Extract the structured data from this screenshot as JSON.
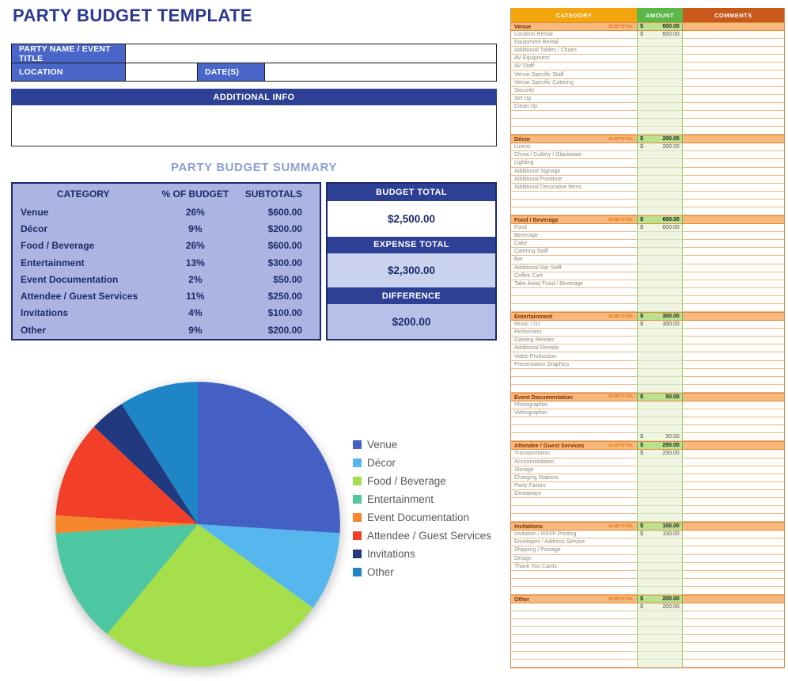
{
  "page": {
    "title": "PARTY BUDGET TEMPLATE"
  },
  "event_form": {
    "fields": [
      {
        "label": "PARTY NAME / EVENT TITLE",
        "value": ""
      },
      {
        "label": "LOCATION",
        "value": ""
      },
      {
        "label": "DATE(S)",
        "value": ""
      }
    ],
    "additional_info": {
      "label": "ADDITIONAL INFO",
      "value": ""
    }
  },
  "summary": {
    "title": "PARTY BUDGET SUMMARY",
    "columns": [
      "CATEGORY",
      "% OF BUDGET",
      "SUBTOTALS"
    ],
    "rows": [
      {
        "category": "Venue",
        "percent": "26%",
        "subtotal": "$600.00"
      },
      {
        "category": "Décor",
        "percent": "9%",
        "subtotal": "$200.00"
      },
      {
        "category": "Food / Beverage",
        "percent": "26%",
        "subtotal": "$600.00"
      },
      {
        "category": "Entertainment",
        "percent": "13%",
        "subtotal": "$300.00"
      },
      {
        "category": "Event Documentation",
        "percent": "2%",
        "subtotal": "$50.00"
      },
      {
        "category": "Attendee / Guest Services",
        "percent": "11%",
        "subtotal": "$250.00"
      },
      {
        "category": "Invitations",
        "percent": "4%",
        "subtotal": "$100.00"
      },
      {
        "category": "Other",
        "percent": "9%",
        "subtotal": "$200.00"
      }
    ],
    "totals": [
      {
        "label": "BUDGET TOTAL",
        "value": "$2,500.00"
      },
      {
        "label": "EXPENSE TOTAL",
        "value": "$2,300.00"
      },
      {
        "label": "DIFFERENCE",
        "value": "$200.00"
      }
    ]
  },
  "chart_data": {
    "type": "pie",
    "title": "",
    "categories": [
      "Venue",
      "Décor",
      "Food / Beverage",
      "Entertainment",
      "Event Documentation",
      "Attendee / Guest Services",
      "Invitations",
      "Other"
    ],
    "values": [
      26,
      9,
      26,
      13,
      2,
      11,
      4,
      9
    ],
    "colors": [
      "#4560C4",
      "#55B7EE",
      "#A5E04C",
      "#4DC7A1",
      "#F5862B",
      "#F23F28",
      "#21397E",
      "#1E86C6"
    ],
    "legend_position": "right",
    "start_angle_deg": -90,
    "direction": "clockwise"
  },
  "detail_table": {
    "columns": [
      {
        "label": "CATEGORY",
        "color": "#F2A50C"
      },
      {
        "label": "AMOUNT",
        "color": "#5CB648"
      },
      {
        "label": "COMMENTS",
        "color": "#C8591B"
      }
    ],
    "subtotal_tag": "SUBTOTAL",
    "currency": "$",
    "sections": [
      {
        "name": "Venue",
        "subtotal": "600.00",
        "items": [
          {
            "label": "Location Rental",
            "amount": "600.00"
          },
          {
            "label": "Equipment Rental",
            "amount": ""
          },
          {
            "label": "Additional Tables / Chairs",
            "amount": ""
          },
          {
            "label": "AV Equipment",
            "amount": ""
          },
          {
            "label": "AV Staff",
            "amount": ""
          },
          {
            "label": "Venue Specific Staff",
            "amount": ""
          },
          {
            "label": "Venue Specific Catering",
            "amount": ""
          },
          {
            "label": "Security",
            "amount": ""
          },
          {
            "label": "Set Up",
            "amount": ""
          },
          {
            "label": "Clean Up",
            "amount": ""
          },
          {
            "label": "",
            "amount": ""
          },
          {
            "label": "",
            "amount": ""
          },
          {
            "label": "",
            "amount": ""
          }
        ]
      },
      {
        "name": "Décor",
        "subtotal": "200.00",
        "items": [
          {
            "label": "Linens",
            "amount": "200.00"
          },
          {
            "label": "China / Cutlery / Glassware",
            "amount": ""
          },
          {
            "label": "Lighting",
            "amount": ""
          },
          {
            "label": "Additional Signage",
            "amount": ""
          },
          {
            "label": "Additional Furniture",
            "amount": ""
          },
          {
            "label": "Additional Decorative Items",
            "amount": ""
          },
          {
            "label": "",
            "amount": ""
          },
          {
            "label": "",
            "amount": ""
          },
          {
            "label": "",
            "amount": ""
          }
        ]
      },
      {
        "name": "Food / Beverage",
        "subtotal": "600.00",
        "items": [
          {
            "label": "Food",
            "amount": "600.00"
          },
          {
            "label": "Beverage",
            "amount": ""
          },
          {
            "label": "Cake",
            "amount": ""
          },
          {
            "label": "Catering Staff",
            "amount": ""
          },
          {
            "label": "Bar",
            "amount": ""
          },
          {
            "label": "Additional Bar Staff",
            "amount": ""
          },
          {
            "label": "Coffee Cart",
            "amount": ""
          },
          {
            "label": "Take Away Food / Beverage",
            "amount": ""
          },
          {
            "label": "",
            "amount": ""
          },
          {
            "label": "",
            "amount": ""
          },
          {
            "label": "",
            "amount": ""
          }
        ]
      },
      {
        "name": "Entertainment",
        "subtotal": "300.00",
        "items": [
          {
            "label": "Music / DJ",
            "amount": "300.00"
          },
          {
            "label": "Performers",
            "amount": ""
          },
          {
            "label": "Gaming Rentals",
            "amount": ""
          },
          {
            "label": "Additional Rentals",
            "amount": ""
          },
          {
            "label": "Video Production",
            "amount": ""
          },
          {
            "label": "Presentation Graphics",
            "amount": ""
          },
          {
            "label": "",
            "amount": ""
          },
          {
            "label": "",
            "amount": ""
          },
          {
            "label": "",
            "amount": ""
          }
        ]
      },
      {
        "name": "Event Documentation",
        "subtotal": "50.00",
        "items": [
          {
            "label": "Photographer",
            "amount": ""
          },
          {
            "label": "Videographer",
            "amount": ""
          },
          {
            "label": "",
            "amount": ""
          },
          {
            "label": "",
            "amount": ""
          },
          {
            "label": "",
            "amount": "50.00"
          }
        ]
      },
      {
        "name": "Attendee / Guest Services",
        "subtotal": "250.00",
        "items": [
          {
            "label": "Transportation",
            "amount": "250.00"
          },
          {
            "label": "Accommodation",
            "amount": ""
          },
          {
            "label": "Storage",
            "amount": ""
          },
          {
            "label": "Charging Stations",
            "amount": ""
          },
          {
            "label": "Party Favors",
            "amount": ""
          },
          {
            "label": "Giveaways",
            "amount": ""
          },
          {
            "label": "",
            "amount": ""
          },
          {
            "label": "",
            "amount": ""
          },
          {
            "label": "",
            "amount": ""
          }
        ]
      },
      {
        "name": "Invitations",
        "subtotal": "100.00",
        "items": [
          {
            "label": "Invitation / RSVP Printing",
            "amount": "100.00"
          },
          {
            "label": "Envelopes / Address Service",
            "amount": ""
          },
          {
            "label": "Shipping / Postage",
            "amount": ""
          },
          {
            "label": "Design",
            "amount": ""
          },
          {
            "label": "Thank You Cards",
            "amount": ""
          },
          {
            "label": "",
            "amount": ""
          },
          {
            "label": "",
            "amount": ""
          },
          {
            "label": "",
            "amount": ""
          }
        ]
      },
      {
        "name": "Other",
        "subtotal": "200.00",
        "items": [
          {
            "label": "",
            "amount": "200.00"
          },
          {
            "label": "",
            "amount": ""
          },
          {
            "label": "",
            "amount": ""
          },
          {
            "label": "",
            "amount": ""
          },
          {
            "label": "",
            "amount": ""
          },
          {
            "label": "",
            "amount": ""
          },
          {
            "label": "",
            "amount": ""
          },
          {
            "label": "",
            "amount": ""
          }
        ]
      }
    ]
  },
  "theme": {
    "title_color": "#2B3893",
    "form_label_bg": "#4A66C8",
    "dark_bar_bg": "#2E4095",
    "summary_title_color": "#8C9FD6",
    "summary_bg": "#ACB5E1",
    "summary_border": "#1B2A6B",
    "expense_box_bg": "#CBD2ED",
    "difference_box_bg": "#B7C0E6",
    "section_row_bg": "#F9B87C",
    "subtotal_amount_bg": "#BCE18D",
    "amount_col_bg": "#F0F5E2"
  }
}
